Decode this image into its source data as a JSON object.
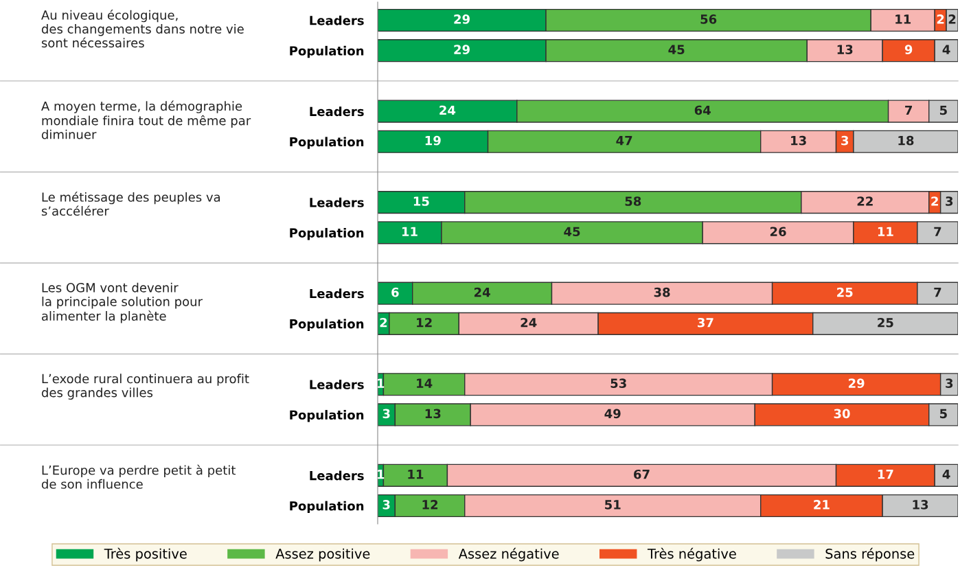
{
  "chart_data": {
    "type": "bar",
    "orientation": "horizontal",
    "stacked": true,
    "data_labels": true,
    "legend": "bottom",
    "grid": false,
    "categories": [
      "Leaders",
      "Population",
      "Leaders",
      "Population",
      "Leaders",
      "Population",
      "Leaders",
      "Population",
      "Leaders",
      "Population",
      "Leaders",
      "Population"
    ],
    "series": [
      {
        "name": "Très positive",
        "color": "#00a651",
        "values": [
          29,
          29,
          24,
          19,
          15,
          11,
          6,
          2,
          1,
          3,
          1,
          3
        ]
      },
      {
        "name": "Assez positive",
        "color": "#5cb947",
        "values": [
          56,
          45,
          64,
          47,
          58,
          45,
          24,
          12,
          14,
          13,
          11,
          12
        ]
      },
      {
        "name": "Assez négative",
        "color": "#f7b6b2",
        "values": [
          11,
          13,
          7,
          13,
          22,
          26,
          38,
          24,
          53,
          49,
          67,
          51
        ]
      },
      {
        "name": "Très négative",
        "color": "#f05223",
        "values": [
          2,
          9,
          null,
          3,
          2,
          11,
          25,
          37,
          29,
          30,
          17,
          21
        ]
      },
      {
        "name": "Sans réponse",
        "color": "#c8c9c9",
        "values": [
          2,
          4,
          5,
          18,
          3,
          7,
          7,
          25,
          3,
          5,
          4,
          13
        ]
      }
    ],
    "annotations": [
      "Au niveau écologique,\ndes changements dans notre vie\nsont nécessaires",
      "A moyen terme, la démographie\nmondiale finira tout de même par\ndiminuer",
      "Le métissage des peuples va\ns’accélérer",
      "Les OGM vont devenir\nla principale solution pour\nalimenter la planète",
      "L’exode rural continuera au profit\ndes grandes villes",
      "L’Europe va perdre petit à petit\nde son influence"
    ]
  }
}
